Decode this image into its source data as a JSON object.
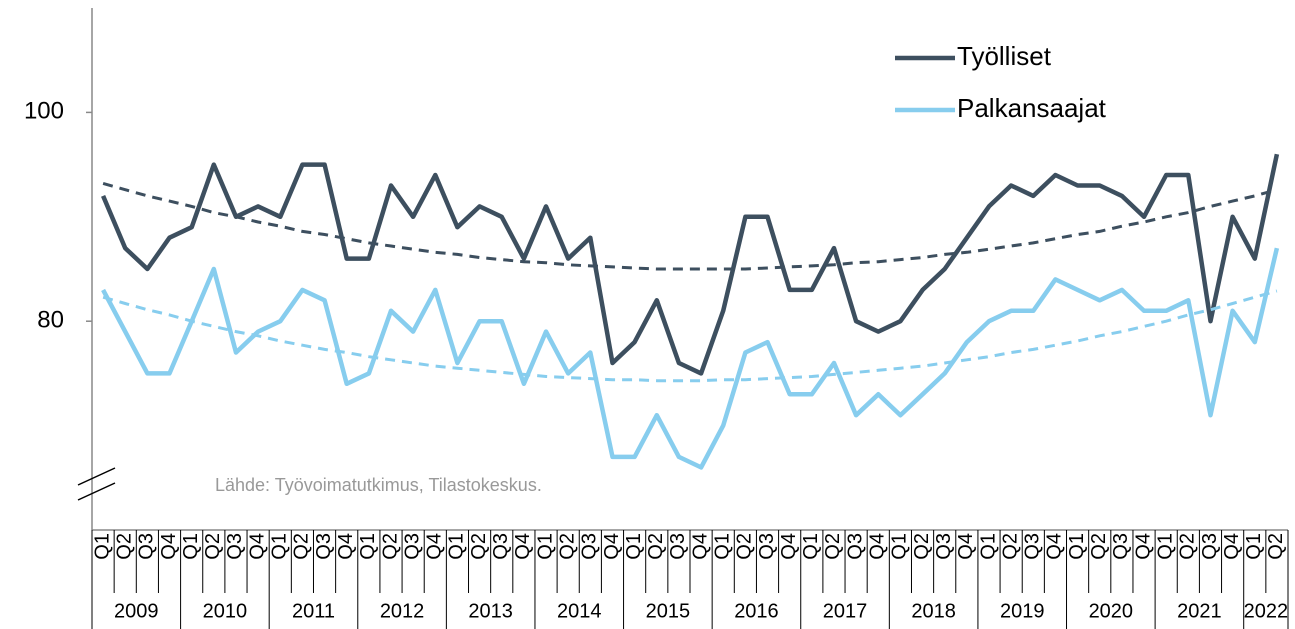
{
  "chart_data": {
    "type": "line",
    "categories": [
      "Q1",
      "Q2",
      "Q3",
      "Q4",
      "Q1",
      "Q2",
      "Q3",
      "Q4",
      "Q1",
      "Q2",
      "Q3",
      "Q4",
      "Q1",
      "Q2",
      "Q3",
      "Q4",
      "Q1",
      "Q2",
      "Q3",
      "Q4",
      "Q1",
      "Q2",
      "Q3",
      "Q4",
      "Q1",
      "Q2",
      "Q3",
      "Q4",
      "Q1",
      "Q2",
      "Q3",
      "Q4",
      "Q1",
      "Q2",
      "Q3",
      "Q4",
      "Q1",
      "Q2",
      "Q3",
      "Q4",
      "Q1",
      "Q2",
      "Q3",
      "Q4",
      "Q1",
      "Q2",
      "Q3",
      "Q4",
      "Q1",
      "Q2",
      "Q3",
      "Q4",
      "Q1",
      "Q2"
    ],
    "years": [
      "2009",
      "2010",
      "2011",
      "2012",
      "2013",
      "2014",
      "2015",
      "2016",
      "2017",
      "2018",
      "2019",
      "2020",
      "2021",
      "2022"
    ],
    "series": [
      {
        "name": "Työlliset",
        "color": "#3d4f5f",
        "values": [
          92,
          87,
          85,
          88,
          89,
          95,
          90,
          91,
          90,
          95,
          95,
          86,
          86,
          93,
          90,
          94,
          89,
          91,
          90,
          86,
          91,
          86,
          88,
          76,
          78,
          82,
          76,
          75,
          81,
          90,
          90,
          83,
          83,
          87,
          80,
          79,
          80,
          83,
          85,
          88,
          91,
          93,
          92,
          94,
          93,
          93,
          92,
          90,
          94,
          94,
          80,
          90,
          86,
          96
        ],
        "trend": [
          93.2,
          92.6,
          92.0,
          91.5,
          91.0,
          90.4,
          90.0,
          89.5,
          89.1,
          88.6,
          88.3,
          87.9,
          87.5,
          87.2,
          86.9,
          86.6,
          86.4,
          86.1,
          85.9,
          85.7,
          85.6,
          85.4,
          85.3,
          85.2,
          85.1,
          85.0,
          85.0,
          85.0,
          85.0,
          85.0,
          85.1,
          85.2,
          85.3,
          85.4,
          85.6,
          85.7,
          85.9,
          86.1,
          86.4,
          86.6,
          86.9,
          87.2,
          87.5,
          87.9,
          88.3,
          88.6,
          89.1,
          89.5,
          90.0,
          90.4,
          91.0,
          91.5,
          92.0,
          92.6
        ]
      },
      {
        "name": "Palkansaajat",
        "color": "#87cdee",
        "values": [
          83,
          79,
          75,
          75,
          80,
          85,
          77,
          79,
          80,
          83,
          82,
          74,
          75,
          81,
          79,
          83,
          76,
          80,
          80,
          74,
          79,
          75,
          77,
          67,
          67,
          71,
          67,
          66,
          70,
          77,
          78,
          73,
          73,
          76,
          71,
          73,
          71,
          73,
          75,
          78,
          80,
          81,
          81,
          84,
          83,
          82,
          83,
          81,
          81,
          82,
          71,
          81,
          78,
          87
        ],
        "trend": [
          82.3,
          81.7,
          81.1,
          80.6,
          80.0,
          79.5,
          79.0,
          78.6,
          78.1,
          77.7,
          77.3,
          77.0,
          76.6,
          76.3,
          76.0,
          75.7,
          75.5,
          75.3,
          75.1,
          74.9,
          74.7,
          74.6,
          74.5,
          74.4,
          74.4,
          74.3,
          74.3,
          74.3,
          74.4,
          74.4,
          74.5,
          74.6,
          74.7,
          74.9,
          75.1,
          75.3,
          75.5,
          75.7,
          76.0,
          76.3,
          76.6,
          77.0,
          77.3,
          77.7,
          78.1,
          78.6,
          79.0,
          79.5,
          80.0,
          80.6,
          81.1,
          81.7,
          82.3,
          82.9
        ]
      }
    ],
    "ylim": [
      60,
      110
    ],
    "yticks": [
      80,
      100
    ],
    "legend": "upper right",
    "annotation": "Lähde: Työvoimatutkimus, Tilastokeskus."
  }
}
